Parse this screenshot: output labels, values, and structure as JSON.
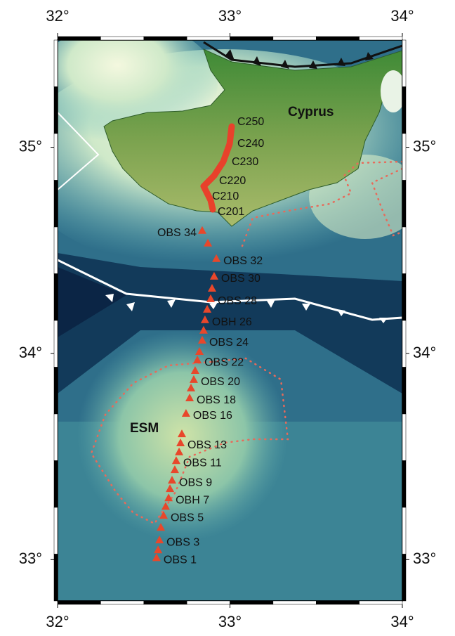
{
  "map": {
    "xlim": [
      32,
      34
    ],
    "ylim": [
      32.8,
      35.52
    ],
    "xticks": [
      {
        "value": 32,
        "label": "32°"
      },
      {
        "value": 33,
        "label": "33°"
      },
      {
        "value": 34,
        "label": "34°"
      }
    ],
    "yticks": [
      {
        "value": 33,
        "label": "33°"
      },
      {
        "value": 34,
        "label": "34°"
      },
      {
        "value": 35,
        "label": "35°"
      }
    ],
    "places": {
      "cyprus": "Cyprus",
      "esm": "ESM"
    },
    "profile_labels": [
      "C250",
      "C240",
      "C230",
      "C220",
      "C210",
      "C201"
    ],
    "station_color": "#e8472b",
    "stations": [
      {
        "label": "OBS 34",
        "lon": 32.839,
        "lat": 34.597
      },
      {
        "label": null,
        "lon": 32.872,
        "lat": 34.536
      },
      {
        "label": "OBS 32",
        "lon": 32.921,
        "lat": 34.461
      },
      {
        "label": "OBS 30",
        "lon": 32.908,
        "lat": 34.375
      },
      {
        "label": null,
        "lon": 32.896,
        "lat": 34.317
      },
      {
        "label": "OBS 28",
        "lon": 32.888,
        "lat": 34.266
      },
      {
        "label": null,
        "lon": 32.868,
        "lat": 34.215
      },
      {
        "label": "OBH 26",
        "lon": 32.855,
        "lat": 34.164
      },
      {
        "label": null,
        "lon": 32.847,
        "lat": 34.113
      },
      {
        "label": "OBS 24",
        "lon": 32.839,
        "lat": 34.065
      },
      {
        "label": null,
        "lon": 32.823,
        "lat": 34.01
      },
      {
        "label": "OBS 22",
        "lon": 32.811,
        "lat": 33.969
      },
      {
        "label": null,
        "lon": 32.798,
        "lat": 33.918
      },
      {
        "label": "OBS 20",
        "lon": 32.79,
        "lat": 33.874
      },
      {
        "label": null,
        "lon": 32.774,
        "lat": 33.833
      },
      {
        "label": "OBS 18",
        "lon": 32.766,
        "lat": 33.785
      },
      {
        "label": "OBS 16",
        "lon": 32.745,
        "lat": 33.71
      },
      {
        "label": null,
        "lon": 32.721,
        "lat": 33.611
      },
      {
        "label": "OBS 13",
        "lon": 32.713,
        "lat": 33.567
      },
      {
        "label": null,
        "lon": 32.705,
        "lat": 33.523
      },
      {
        "label": "OBS 11",
        "lon": 32.688,
        "lat": 33.481
      },
      {
        "label": null,
        "lon": 32.68,
        "lat": 33.437
      },
      {
        "label": "OBS 9",
        "lon": 32.664,
        "lat": 33.386
      },
      {
        "label": null,
        "lon": 32.652,
        "lat": 33.345
      },
      {
        "label": "OBH 7",
        "lon": 32.644,
        "lat": 33.3
      },
      {
        "label": null,
        "lon": 32.627,
        "lat": 33.259
      },
      {
        "label": "OBS 5",
        "lon": 32.615,
        "lat": 33.215
      },
      {
        "label": null,
        "lon": 32.599,
        "lat": 33.157
      },
      {
        "label": "OBS 3",
        "lon": 32.591,
        "lat": 33.096
      },
      {
        "label": null,
        "lon": 32.583,
        "lat": 33.048
      },
      {
        "label": "OBS 1",
        "lon": 32.574,
        "lat": 33.01
      }
    ]
  }
}
